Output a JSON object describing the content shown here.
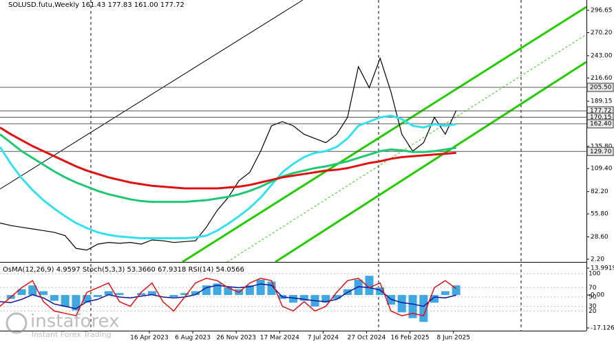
{
  "chart_data": [
    {
      "type": "line",
      "title": "SOLUSD.futu,Weekly  161.43 177.83 161.00 177.72",
      "xlim": [
        0,
        216
      ],
      "xticks": [
        {
          "value": 55,
          "label": "16 Apr 2023"
        },
        {
          "value": 71,
          "label": "6 Aug 2023"
        },
        {
          "value": 87,
          "label": "26 Nov 2023"
        },
        {
          "value": 103,
          "label": "17 Mar 2024"
        },
        {
          "value": 119,
          "label": "7 Jul 2024"
        },
        {
          "value": 135,
          "label": "27 Oct 2024"
        },
        {
          "value": 151,
          "label": "16 Feb 2025"
        },
        {
          "value": 167,
          "label": "8 Jun 2025"
        }
      ],
      "ylim": [
        -1.05,
        308.85
      ],
      "yticks": [
        296.65,
        {
          "value": 270.2,
          "label": "270.20"
        },
        {
          "value": 243,
          "label": "243.00"
        },
        {
          "value": 216.6,
          "label": "216.60"
        },
        189.15,
        {
          "value": 135.8,
          "label": "135.80"
        },
        {
          "value": 109.4,
          "label": "109.40"
        },
        {
          "value": 82.2,
          "label": "82.20"
        },
        {
          "value": 55.8,
          "label": "55.80"
        },
        {
          "value": 28.6,
          "label": "28.60"
        },
        {
          "value": 2.2,
          "label": "2.20"
        }
      ],
      "levels": [
        {
          "value": 205.5,
          "label": "205.50"
        },
        177.72,
        170.15,
        {
          "value": 162.4,
          "label": "162.40"
        },
        {
          "value": 129.7,
          "label": "129.70"
        }
      ],
      "series": [
        {
          "color": "#000000",
          "values": [
            45,
            42,
            40,
            38,
            36,
            34,
            30,
            15,
            13,
            20,
            22,
            21,
            22,
            20,
            25,
            24,
            22,
            23,
            24,
            40,
            60,
            75,
            95,
            105,
            130,
            160,
            165,
            160,
            150,
            145,
            140,
            150,
            170,
            230,
            205,
            240,
            200,
            150,
            130,
            140,
            170,
            150,
            178
          ]
        },
        {
          "color": "#33e0f0",
          "values": [
            135,
            115,
            98,
            84,
            72,
            62,
            53,
            45,
            39,
            34,
            31,
            29,
            28,
            27,
            27,
            27,
            27,
            27,
            28,
            30,
            36,
            44,
            53,
            63,
            75,
            90,
            105,
            115,
            123,
            128,
            130,
            135,
            145,
            160,
            165,
            170,
            172,
            168,
            160,
            158,
            162,
            160,
            162
          ]
        },
        {
          "color": "#1ec873",
          "values": [
            150,
            140,
            130,
            122,
            114,
            106,
            99,
            93,
            88,
            83,
            79,
            76,
            73,
            71,
            70,
            70,
            70,
            70,
            71,
            72,
            74,
            76,
            79,
            83,
            88,
            94,
            100,
            104,
            107,
            110,
            112,
            115,
            118,
            122,
            126,
            130,
            132,
            131,
            129,
            129,
            130,
            132,
            134
          ]
        },
        {
          "color": "#e01010",
          "values": [
            158,
            150,
            143,
            136,
            130,
            124,
            118,
            112,
            107,
            103,
            99,
            96,
            93,
            91,
            89,
            88,
            87,
            86,
            86,
            86,
            86,
            87,
            88,
            90,
            93,
            96,
            99,
            101,
            103,
            105,
            107,
            108,
            110,
            113,
            116,
            118,
            121,
            123,
            124,
            125,
            126,
            127,
            128
          ]
        }
      ]
    },
    {
      "type": "oscillator",
      "title": "OsMA(12,26,9) 4.9597  Stoch(5,3,3) 53.3660 67.9318  RSI(14) 54.0566",
      "ylim": [
        -17.1267,
        13.9919
      ],
      "yticks": [
        13.9919,
        {
          "value": 0,
          "label": "0.00"
        },
        -17.1267
      ],
      "y2lim": [
        0,
        100
      ],
      "y2ticks": [
        100,
        70,
        50,
        30,
        20
      ],
      "series": [
        {
          "type": "bar",
          "color": "#3fa8e0",
          "values": [
            0,
            -2,
            3,
            5,
            2,
            -3,
            -6,
            -8,
            -4,
            -1,
            2,
            1,
            0,
            1,
            2,
            0,
            -1,
            1,
            2,
            5,
            6,
            4,
            3,
            5,
            8,
            7,
            -2,
            -4,
            -3,
            -6,
            -4,
            -2,
            3,
            8,
            10,
            4,
            -5,
            -9,
            -12,
            -14,
            -4,
            2,
            5
          ]
        },
        {
          "type": "line",
          "axis": "y2",
          "color": "#1010a0",
          "values": [
            40,
            38,
            45,
            55,
            48,
            35,
            30,
            25,
            40,
            45,
            55,
            50,
            48,
            52,
            55,
            50,
            48,
            50,
            55,
            70,
            75,
            72,
            70,
            72,
            78,
            75,
            50,
            48,
            45,
            42,
            40,
            45,
            60,
            72,
            70,
            65,
            45,
            38,
            35,
            30,
            50,
            48,
            54
          ]
        },
        {
          "type": "line",
          "axis": "y2",
          "color": "#e01010",
          "values": [
            30,
            50,
            70,
            85,
            40,
            20,
            15,
            10,
            60,
            70,
            80,
            40,
            30,
            60,
            80,
            40,
            20,
            50,
            80,
            90,
            85,
            70,
            60,
            80,
            90,
            85,
            30,
            20,
            40,
            20,
            30,
            60,
            85,
            90,
            70,
            80,
            20,
            10,
            15,
            10,
            70,
            85,
            68
          ]
        }
      ]
    }
  ],
  "watermark": {
    "brand": "instaforex",
    "tagline": "Instant Forex Trading"
  }
}
